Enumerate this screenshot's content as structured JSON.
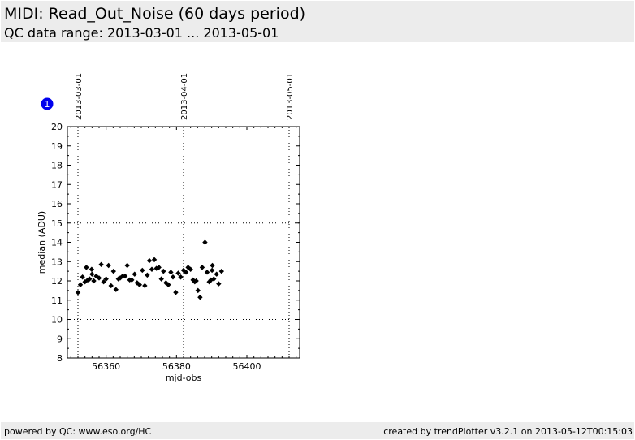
{
  "header": {
    "title": "MIDI: Read_Out_Noise (60 days period)",
    "subtitle": "QC data range: 2013-03-01 ... 2013-05-01"
  },
  "footer": {
    "left": "powered by QC: www.eso.org/HC",
    "right": "created by trendPlotter v3.2.1 on 2013-05-12T00:15:03"
  },
  "badge": {
    "label": "1",
    "color": "#0000ee"
  },
  "chart_data": {
    "type": "scatter",
    "xlabel": "mjd-obs",
    "ylabel": "median (ADU)",
    "xlim": [
      56349,
      56415
    ],
    "ylim": [
      8,
      20
    ],
    "xticks": [
      56360,
      56380,
      56400
    ],
    "yticks": [
      8,
      9,
      10,
      11,
      12,
      13,
      14,
      15,
      16,
      17,
      18,
      19,
      20
    ],
    "hlines": [
      10,
      15
    ],
    "date_markers": [
      {
        "x": 56352,
        "label": "2013-03-01"
      },
      {
        "x": 56382,
        "label": "2013-04-01"
      },
      {
        "x": 56412,
        "label": "2013-05-01"
      }
    ],
    "marker_color": "#000000",
    "points": [
      {
        "x": 56352.0,
        "y": 11.4
      },
      {
        "x": 56352.7,
        "y": 11.8
      },
      {
        "x": 56353.3,
        "y": 12.2
      },
      {
        "x": 56354.0,
        "y": 11.95
      },
      {
        "x": 56354.4,
        "y": 12.7
      },
      {
        "x": 56354.8,
        "y": 12.05
      },
      {
        "x": 56355.3,
        "y": 12.1
      },
      {
        "x": 56355.9,
        "y": 12.6
      },
      {
        "x": 56356.0,
        "y": 12.35
      },
      {
        "x": 56356.5,
        "y": 12.0
      },
      {
        "x": 56357.2,
        "y": 12.25
      },
      {
        "x": 56358.0,
        "y": 12.15
      },
      {
        "x": 56358.6,
        "y": 12.85
      },
      {
        "x": 56359.3,
        "y": 11.95
      },
      {
        "x": 56360.0,
        "y": 12.1
      },
      {
        "x": 56360.7,
        "y": 12.8
      },
      {
        "x": 56361.4,
        "y": 11.75
      },
      {
        "x": 56362.1,
        "y": 12.5
      },
      {
        "x": 56362.8,
        "y": 11.55
      },
      {
        "x": 56363.5,
        "y": 12.1
      },
      {
        "x": 56364.0,
        "y": 12.15
      },
      {
        "x": 56364.7,
        "y": 12.25
      },
      {
        "x": 56365.4,
        "y": 12.25
      },
      {
        "x": 56366.0,
        "y": 12.8
      },
      {
        "x": 56366.7,
        "y": 12.05
      },
      {
        "x": 56367.3,
        "y": 12.05
      },
      {
        "x": 56368.1,
        "y": 12.35
      },
      {
        "x": 56368.8,
        "y": 11.9
      },
      {
        "x": 56369.5,
        "y": 11.8
      },
      {
        "x": 56370.3,
        "y": 12.55
      },
      {
        "x": 56371.0,
        "y": 11.75
      },
      {
        "x": 56371.7,
        "y": 12.3
      },
      {
        "x": 56372.3,
        "y": 13.05
      },
      {
        "x": 56373.0,
        "y": 12.6
      },
      {
        "x": 56373.7,
        "y": 13.1
      },
      {
        "x": 56374.3,
        "y": 12.65
      },
      {
        "x": 56375.0,
        "y": 12.7
      },
      {
        "x": 56375.7,
        "y": 12.1
      },
      {
        "x": 56376.3,
        "y": 12.5
      },
      {
        "x": 56377.0,
        "y": 11.9
      },
      {
        "x": 56377.7,
        "y": 11.8
      },
      {
        "x": 56378.4,
        "y": 12.45
      },
      {
        "x": 56379.0,
        "y": 12.2
      },
      {
        "x": 56379.8,
        "y": 11.4
      },
      {
        "x": 56380.5,
        "y": 12.4
      },
      {
        "x": 56381.2,
        "y": 12.2
      },
      {
        "x": 56382.0,
        "y": 12.55
      },
      {
        "x": 56382.7,
        "y": 12.45
      },
      {
        "x": 56383.3,
        "y": 12.7
      },
      {
        "x": 56384.0,
        "y": 12.6
      },
      {
        "x": 56384.7,
        "y": 12.05
      },
      {
        "x": 56385.2,
        "y": 11.95
      },
      {
        "x": 56385.6,
        "y": 12.0
      },
      {
        "x": 56386.1,
        "y": 11.5
      },
      {
        "x": 56386.7,
        "y": 11.15
      },
      {
        "x": 56387.3,
        "y": 12.7
      },
      {
        "x": 56388.1,
        "y": 14.0
      },
      {
        "x": 56388.7,
        "y": 12.45
      },
      {
        "x": 56389.3,
        "y": 11.95
      },
      {
        "x": 56389.8,
        "y": 12.05
      },
      {
        "x": 56390.1,
        "y": 12.55
      },
      {
        "x": 56390.2,
        "y": 12.8
      },
      {
        "x": 56390.6,
        "y": 12.1
      },
      {
        "x": 56391.4,
        "y": 12.35
      },
      {
        "x": 56392.0,
        "y": 11.85
      },
      {
        "x": 56392.8,
        "y": 12.5
      }
    ]
  }
}
